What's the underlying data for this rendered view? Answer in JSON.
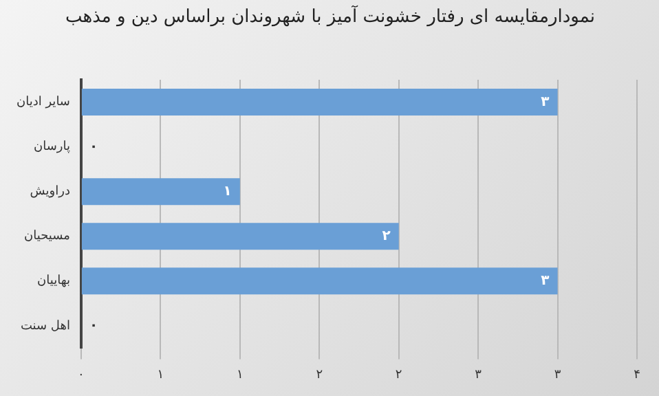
{
  "chart_data": {
    "type": "bar",
    "orientation": "horizontal",
    "title": "نمودارمقایسه ای رفتار خشونت آمیز با شهروندان براساس دین و مذهب",
    "categories": [
      "سایر ادیان",
      "پارسان",
      "دراویش",
      "مسیحیان",
      "بهاییان",
      "اهل سنت"
    ],
    "values": [
      3,
      0,
      1,
      2,
      3,
      0
    ],
    "value_labels": [
      "۳",
      "۰",
      "۱",
      "۲",
      "۳",
      "۰"
    ],
    "color": "#6a9fd6",
    "xlim": [
      0,
      3.5
    ],
    "xticks": [
      {
        "value": 0,
        "label": "۰"
      },
      {
        "value": 0.5,
        "label": "۱"
      },
      {
        "value": 1,
        "label": "۱"
      },
      {
        "value": 1.5,
        "label": "۲"
      },
      {
        "value": 2,
        "label": "۲"
      },
      {
        "value": 2.5,
        "label": "۳"
      },
      {
        "value": 3,
        "label": "۳"
      },
      {
        "value": 3.5,
        "label": "۴"
      }
    ],
    "grid": "x",
    "legend": false
  }
}
